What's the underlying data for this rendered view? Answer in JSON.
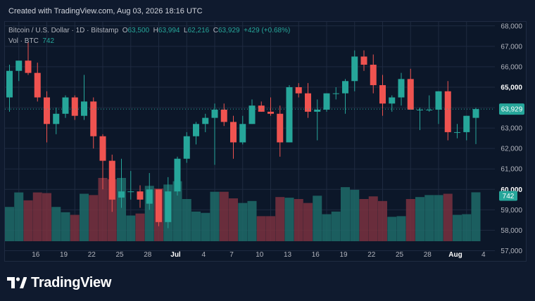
{
  "header": {
    "created_text": "Created with TradingView.com, Aug 03, 2026 18:16 UTC"
  },
  "legend": {
    "symbol": "Bitcoin / U.S. Dollar · 1D · Bitstamp",
    "open_key": "O",
    "open": "63,500",
    "high_key": "H",
    "high": "63,994",
    "low_key": "L",
    "low": "62,216",
    "close_key": "C",
    "close": "63,929",
    "change": "+429 (+0.68%)",
    "vol_label": "Vol · BTC",
    "vol_value": "742"
  },
  "price_badge": "63,929",
  "volume_badge": "742",
  "brand": {
    "name": "TradingView",
    "logo_icon": "tradingview-logo-icon"
  },
  "colors": {
    "up": "#26a69a",
    "down": "#ef5350",
    "up_volume": "#1f6b69",
    "down_volume": "#7a3140",
    "background": "#0c1729",
    "grid": "#1e2a40"
  },
  "chart_data": {
    "type": "candlestick",
    "title": "Bitcoin / U.S. Dollar · 1D · Bitstamp",
    "yaxis_ticks": [
      "68,000",
      "67,000",
      "66,000",
      "65,000",
      "64,000",
      "63,000",
      "62,000",
      "61,000",
      "60,000",
      "59,000",
      "58,000",
      "57,000"
    ],
    "bold_ticks": [
      "65,000",
      "60,000"
    ],
    "ylim": [
      56500,
      68200
    ],
    "xaxis_ticks": [
      {
        "label": "16",
        "index": 1
      },
      {
        "label": "19",
        "index": 4
      },
      {
        "label": "22",
        "index": 7
      },
      {
        "label": "25",
        "index": 10
      },
      {
        "label": "28",
        "index": 13
      },
      {
        "label": "Jul",
        "index": 16,
        "bold": true
      },
      {
        "label": "4",
        "index": 19
      },
      {
        "label": "7",
        "index": 22
      },
      {
        "label": "10",
        "index": 25
      },
      {
        "label": "13",
        "index": 28
      },
      {
        "label": "16",
        "index": 31
      },
      {
        "label": "19",
        "index": 34
      },
      {
        "label": "22",
        "index": 37
      },
      {
        "label": "25",
        "index": 40
      },
      {
        "label": "28",
        "index": 43
      },
      {
        "label": "Aug",
        "index": 46,
        "bold": true
      },
      {
        "label": "4",
        "index": 49
      }
    ],
    "last_price": 63929,
    "candles": [
      {
        "o": 64500,
        "h": 66100,
        "l": 63800,
        "c": 65800,
        "v": 520
      },
      {
        "o": 65800,
        "h": 66300,
        "l": 65300,
        "c": 66300,
        "v": 740
      },
      {
        "o": 66300,
        "h": 67200,
        "l": 65600,
        "c": 65700,
        "v": 620
      },
      {
        "o": 65700,
        "h": 66200,
        "l": 64300,
        "c": 64500,
        "v": 740
      },
      {
        "o": 64500,
        "h": 64800,
        "l": 62300,
        "c": 63200,
        "v": 730
      },
      {
        "o": 63200,
        "h": 64000,
        "l": 62700,
        "c": 63700,
        "v": 520
      },
      {
        "o": 63700,
        "h": 64600,
        "l": 63500,
        "c": 64500,
        "v": 440
      },
      {
        "o": 64500,
        "h": 64600,
        "l": 63400,
        "c": 63600,
        "v": 400
      },
      {
        "o": 63600,
        "h": 65600,
        "l": 63400,
        "c": 64300,
        "v": 720
      },
      {
        "o": 64300,
        "h": 64500,
        "l": 62000,
        "c": 62600,
        "v": 700
      },
      {
        "o": 62600,
        "h": 62700,
        "l": 60000,
        "c": 61400,
        "v": 960
      },
      {
        "o": 61400,
        "h": 61700,
        "l": 58900,
        "c": 59500,
        "v": 940
      },
      {
        "o": 59600,
        "h": 61500,
        "l": 59100,
        "c": 59900,
        "v": 960
      },
      {
        "o": 59900,
        "h": 60900,
        "l": 59500,
        "c": 59900,
        "v": 390
      },
      {
        "o": 59900,
        "h": 60200,
        "l": 59100,
        "c": 59500,
        "v": 420
      },
      {
        "o": 59300,
        "h": 60800,
        "l": 59000,
        "c": 60000,
        "v": 840
      },
      {
        "o": 60000,
        "h": 60000,
        "l": 58200,
        "c": 58400,
        "v": 800
      },
      {
        "o": 58400,
        "h": 60600,
        "l": 58100,
        "c": 59900,
        "v": 860
      },
      {
        "o": 59900,
        "h": 61600,
        "l": 59700,
        "c": 61500,
        "v": 910
      },
      {
        "o": 61500,
        "h": 62800,
        "l": 61300,
        "c": 62600,
        "v": 640
      },
      {
        "o": 62600,
        "h": 63300,
        "l": 62200,
        "c": 63200,
        "v": 450
      },
      {
        "o": 63200,
        "h": 63700,
        "l": 62800,
        "c": 63500,
        "v": 430
      },
      {
        "o": 63500,
        "h": 64200,
        "l": 61200,
        "c": 63900,
        "v": 750
      },
      {
        "o": 63900,
        "h": 64200,
        "l": 63100,
        "c": 63300,
        "v": 750
      },
      {
        "o": 63300,
        "h": 63600,
        "l": 61500,
        "c": 62300,
        "v": 650
      },
      {
        "o": 62300,
        "h": 63600,
        "l": 62200,
        "c": 63200,
        "v": 580
      },
      {
        "o": 63200,
        "h": 64400,
        "l": 63200,
        "c": 64100,
        "v": 610
      },
      {
        "o": 64100,
        "h": 64300,
        "l": 63800,
        "c": 63800,
        "v": 380
      },
      {
        "o": 63800,
        "h": 64500,
        "l": 63600,
        "c": 63700,
        "v": 380
      },
      {
        "o": 63700,
        "h": 64100,
        "l": 61600,
        "c": 62300,
        "v": 670
      },
      {
        "o": 62300,
        "h": 65100,
        "l": 62300,
        "c": 65000,
        "v": 660
      },
      {
        "o": 65000,
        "h": 65200,
        "l": 64500,
        "c": 64700,
        "v": 640
      },
      {
        "o": 64700,
        "h": 65200,
        "l": 63500,
        "c": 63800,
        "v": 580
      },
      {
        "o": 63800,
        "h": 64400,
        "l": 62400,
        "c": 63900,
        "v": 690
      },
      {
        "o": 63900,
        "h": 64700,
        "l": 63800,
        "c": 64700,
        "v": 410
      },
      {
        "o": 64700,
        "h": 65000,
        "l": 64400,
        "c": 64700,
        "v": 450
      },
      {
        "o": 64700,
        "h": 65400,
        "l": 63700,
        "c": 65300,
        "v": 820
      },
      {
        "o": 65300,
        "h": 66800,
        "l": 64800,
        "c": 66500,
        "v": 780
      },
      {
        "o": 66500,
        "h": 66800,
        "l": 65800,
        "c": 66100,
        "v": 640
      },
      {
        "o": 66100,
        "h": 66600,
        "l": 64700,
        "c": 65100,
        "v": 680
      },
      {
        "o": 65100,
        "h": 65600,
        "l": 63600,
        "c": 64200,
        "v": 610
      },
      {
        "o": 64200,
        "h": 64600,
        "l": 63800,
        "c": 64500,
        "v": 370
      },
      {
        "o": 64500,
        "h": 65700,
        "l": 64100,
        "c": 65400,
        "v": 380
      },
      {
        "o": 65400,
        "h": 65900,
        "l": 63900,
        "c": 63900,
        "v": 640
      },
      {
        "o": 63900,
        "h": 64000,
        "l": 62900,
        "c": 63900,
        "v": 670
      },
      {
        "o": 63900,
        "h": 64600,
        "l": 63800,
        "c": 63900,
        "v": 700
      },
      {
        "o": 63900,
        "h": 64800,
        "l": 63200,
        "c": 64800,
        "v": 700
      },
      {
        "o": 64800,
        "h": 65300,
        "l": 62400,
        "c": 62800,
        "v": 720
      },
      {
        "o": 62800,
        "h": 63200,
        "l": 62500,
        "c": 62800,
        "v": 400
      },
      {
        "o": 62800,
        "h": 63600,
        "l": 62400,
        "c": 63600,
        "v": 410
      },
      {
        "o": 63500,
        "h": 63994,
        "l": 62216,
        "c": 63929,
        "v": 742
      }
    ]
  }
}
